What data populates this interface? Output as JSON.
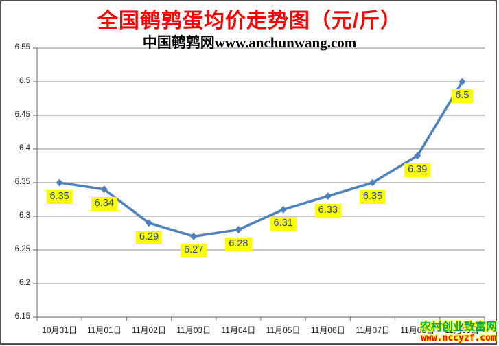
{
  "title": "全国鹌鹑蛋均价走势图（元/斤）",
  "subtitle": "中国鹌鹑网www.anchunwang.com",
  "watermark": {
    "site_name": "农村创业致富网",
    "site_url": "www.nccyzf.com",
    "site_name_color": "#00A651",
    "site_url_color": "#FF0000",
    "outline_color": "#FFFF00"
  },
  "colors": {
    "title": "#FF0000",
    "line": "#4F81BD",
    "marker": "#4F81BD",
    "gridline": "#8C8C8C",
    "axis": "#7F7F7F",
    "data_label_bg": "#FFFF00",
    "data_label_text": "#1F497D"
  },
  "chart_data": {
    "type": "line",
    "title": "全国鹌鹑蛋均价走势图（元/斤）",
    "subtitle": "中国鹌鹑网www.anchunwang.com",
    "categories": [
      "10月31日",
      "11月01日",
      "11月02日",
      "11月03日",
      "11月04日",
      "11月05日",
      "11月06日",
      "11月07日",
      "11月08日",
      "11月09日"
    ],
    "values": [
      6.35,
      6.34,
      6.29,
      6.27,
      6.28,
      6.31,
      6.33,
      6.35,
      6.39,
      6.5
    ],
    "data_labels": [
      "6.35",
      "6.34",
      "6.29",
      "6.27",
      "6.28",
      "6.31",
      "6.33",
      "6.35",
      "6.39",
      "6.5"
    ],
    "yticks": [
      "6.55",
      "6.5",
      "6.45",
      "6.4",
      "6.35",
      "6.3",
      "6.25",
      "6.2",
      "6.15"
    ],
    "ylim": [
      6.15,
      6.55
    ],
    "ytick_step": 0.05,
    "xlabel": "",
    "ylabel": "",
    "grid": true,
    "legend": false,
    "marker": "diamond",
    "data_label_position": "below"
  }
}
